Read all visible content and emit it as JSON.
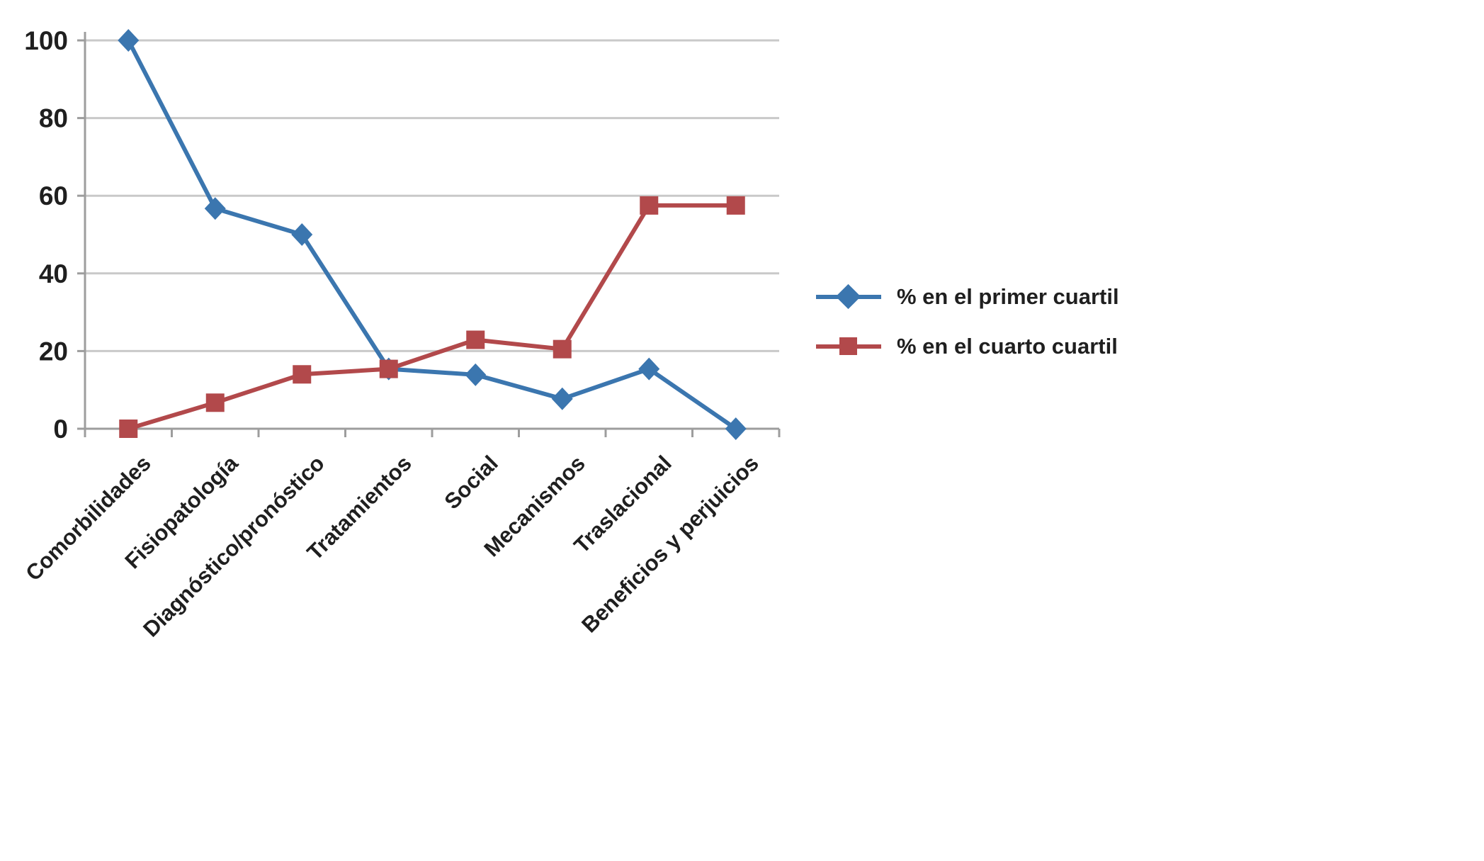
{
  "chart_data": {
    "type": "line",
    "title": "",
    "categories": [
      "Comorbilidades",
      "Fisiopatología",
      "Diagnóstico/pronóstico",
      "Tratamientos",
      "Social",
      "Mecanismos",
      "Traslacional",
      "Beneficios y perjuicios"
    ],
    "series": [
      {
        "name": "% en el primer cuartil",
        "marker": "diamond",
        "color": "#3B76AF",
        "values": [
          100,
          56.7,
          50,
          15.4,
          13.9,
          7.7,
          15.4,
          0
        ]
      },
      {
        "name": "% en el cuarto cuartil",
        "marker": "square",
        "color": "#B2494B",
        "values": [
          0,
          6.7,
          14,
          15.4,
          22.9,
          20.5,
          57.5,
          57.5
        ]
      }
    ],
    "ylim": [
      0,
      100
    ],
    "yticks": [
      0,
      20,
      40,
      60,
      80,
      100
    ],
    "xlabel": "",
    "ylabel": "",
    "grid": "horizontal",
    "x_label_rotation_deg": 45,
    "legend_position": "right",
    "grid_color": "#c9c9c9",
    "axis_color": "#9d9d9d",
    "text_color": "#1f1f1f",
    "background_color": "#ffffff"
  }
}
